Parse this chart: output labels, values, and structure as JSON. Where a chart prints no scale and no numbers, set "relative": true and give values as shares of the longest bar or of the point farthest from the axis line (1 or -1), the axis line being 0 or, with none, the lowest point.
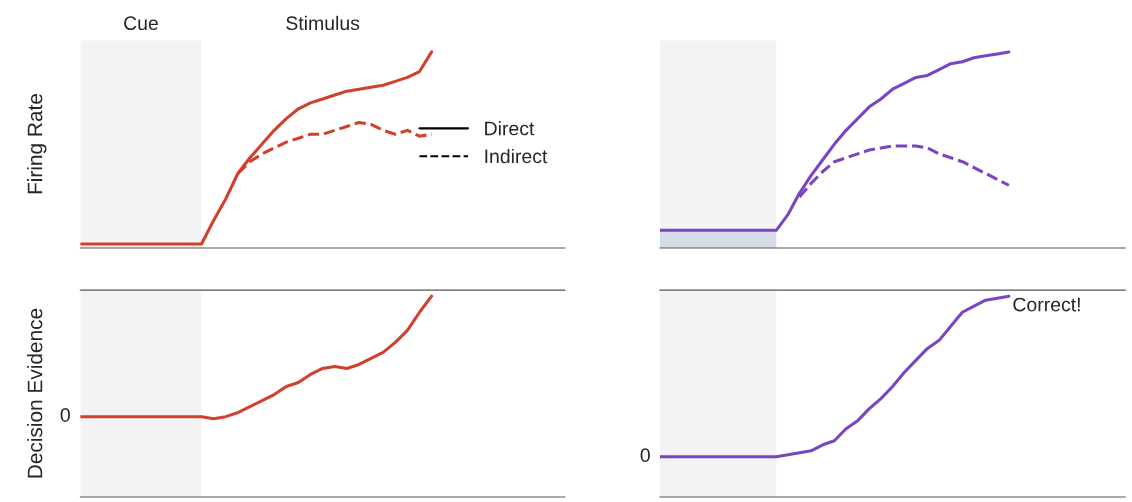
{
  "chart_data": [
    {
      "type": "line",
      "relative": true,
      "ylabel": "Firing Rate",
      "grid": false,
      "legend": "right",
      "categories": [
        null,
        null,
        null,
        null,
        null,
        null,
        null,
        null,
        null,
        null,
        null,
        null,
        null,
        null,
        null,
        null,
        null,
        null,
        null,
        null,
        null,
        null,
        null,
        null,
        null,
        null,
        null,
        null,
        null,
        null,
        null,
        null,
        null,
        null,
        null,
        null,
        null,
        null,
        null,
        null,
        null
      ],
      "annotations": [
        "Cue",
        "Stimulus"
      ],
      "series": [
        {
          "name": "Direct",
          "color": "#d0402c",
          "line_style": "solid",
          "values": [
            0.02,
            0.02,
            0.02,
            0.02,
            0.02,
            0.02,
            0.02,
            0.02,
            0.02,
            0.02,
            0.02,
            0.14,
            0.25,
            0.38,
            0.46,
            0.53,
            0.6,
            0.66,
            0.71,
            0.74,
            0.76,
            0.78,
            0.8,
            0.81,
            0.82,
            0.83,
            0.85,
            0.87,
            0.9,
            1.0,
            null,
            null,
            null,
            null,
            null,
            null,
            null,
            null,
            null,
            null,
            null
          ]
        },
        {
          "name": "Indirect",
          "color": "#d0402c",
          "line_style": "dashed",
          "values": [
            null,
            null,
            null,
            null,
            null,
            null,
            null,
            null,
            null,
            null,
            null,
            null,
            null,
            0.38,
            0.44,
            0.48,
            0.51,
            0.54,
            0.56,
            0.58,
            0.58,
            0.6,
            0.62,
            0.64,
            0.63,
            0.6,
            0.58,
            0.6,
            0.57,
            0.58,
            null,
            null,
            null,
            null,
            null,
            null,
            null,
            null,
            null,
            null,
            null
          ]
        }
      ]
    },
    {
      "type": "line",
      "relative": true,
      "grid": false,
      "categories": [
        null,
        null,
        null,
        null,
        null,
        null,
        null,
        null,
        null,
        null,
        null,
        null,
        null,
        null,
        null,
        null,
        null,
        null,
        null,
        null,
        null,
        null,
        null,
        null,
        null,
        null,
        null,
        null,
        null,
        null,
        null,
        null,
        null,
        null,
        null,
        null,
        null,
        null,
        null,
        null,
        null
      ],
      "series": [
        {
          "type": "area",
          "color": "#d6dce6",
          "values": [
            0.09,
            0.09,
            0.09,
            0.09,
            0.09,
            0.09,
            0.09,
            0.09,
            0.09,
            0.09,
            0.09,
            null,
            null,
            null,
            null,
            null,
            null,
            null,
            null,
            null,
            null,
            null,
            null,
            null,
            null,
            null,
            null,
            null,
            null,
            null,
            null,
            null,
            null,
            null,
            null,
            null,
            null,
            null,
            null,
            null,
            null
          ]
        },
        {
          "color": "#7a45c0",
          "line_style": "solid",
          "values": [
            0.09,
            0.09,
            0.09,
            0.09,
            0.09,
            0.09,
            0.09,
            0.09,
            0.09,
            0.09,
            0.09,
            0.17,
            0.28,
            0.37,
            0.45,
            0.53,
            0.6,
            0.66,
            0.72,
            0.76,
            0.81,
            0.84,
            0.87,
            0.88,
            0.91,
            0.94,
            0.95,
            0.97,
            0.98,
            0.99,
            1.0,
            null,
            null,
            null,
            null,
            null,
            null,
            null,
            null,
            null,
            null
          ]
        },
        {
          "color": "#7a45c0",
          "line_style": "dashed",
          "values": [
            null,
            null,
            null,
            null,
            null,
            null,
            null,
            null,
            null,
            null,
            null,
            null,
            0.26,
            0.33,
            0.39,
            0.44,
            0.46,
            0.48,
            0.5,
            0.51,
            0.52,
            0.52,
            0.52,
            0.51,
            0.48,
            0.46,
            0.44,
            0.41,
            0.38,
            0.35,
            0.32,
            null,
            null,
            null,
            null,
            null,
            null,
            null,
            null,
            null,
            null
          ]
        }
      ]
    },
    {
      "type": "line",
      "relative": true,
      "ylabel": "Decision Evidence",
      "grid": false,
      "categories": [
        null,
        null,
        null,
        null,
        null,
        null,
        null,
        null,
        null,
        null,
        null,
        null,
        null,
        null,
        null,
        null,
        null,
        null,
        null,
        null,
        null,
        null,
        null,
        null,
        null,
        null,
        null,
        null,
        null,
        null,
        null,
        null,
        null,
        null,
        null,
        null,
        null,
        null,
        null,
        null,
        null
      ],
      "annotations": [
        "0"
      ],
      "series": [
        {
          "color": "#d0402c",
          "line_style": "solid",
          "values": [
            0.4,
            0.4,
            0.4,
            0.4,
            0.4,
            0.4,
            0.4,
            0.4,
            0.4,
            0.4,
            0.4,
            0.39,
            0.4,
            0.42,
            0.45,
            0.48,
            0.51,
            0.55,
            0.57,
            0.61,
            0.64,
            0.65,
            0.64,
            0.66,
            0.69,
            0.72,
            0.77,
            0.83,
            0.92,
            1.0,
            null,
            null,
            null,
            null,
            null,
            null,
            null,
            null,
            null,
            null,
            null
          ]
        }
      ]
    },
    {
      "type": "line",
      "relative": true,
      "grid": false,
      "categories": [
        null,
        null,
        null,
        null,
        null,
        null,
        null,
        null,
        null,
        null,
        null,
        null,
        null,
        null,
        null,
        null,
        null,
        null,
        null,
        null,
        null,
        null,
        null,
        null,
        null,
        null,
        null,
        null,
        null,
        null,
        null,
        null,
        null,
        null,
        null,
        null,
        null,
        null,
        null,
        null,
        null
      ],
      "annotations": [
        "0",
        "Correct!"
      ],
      "series": [
        {
          "color": "#7a45c0",
          "line_style": "solid",
          "values": [
            0.2,
            0.2,
            0.2,
            0.2,
            0.2,
            0.2,
            0.2,
            0.2,
            0.2,
            0.2,
            0.2,
            0.21,
            0.22,
            0.23,
            0.26,
            0.28,
            0.34,
            0.38,
            0.44,
            0.49,
            0.55,
            0.62,
            0.68,
            0.74,
            0.78,
            0.85,
            0.92,
            0.95,
            0.98,
            0.99,
            1.0,
            null,
            null,
            null,
            null,
            null,
            null,
            null,
            null,
            null,
            null
          ]
        }
      ]
    }
  ]
}
